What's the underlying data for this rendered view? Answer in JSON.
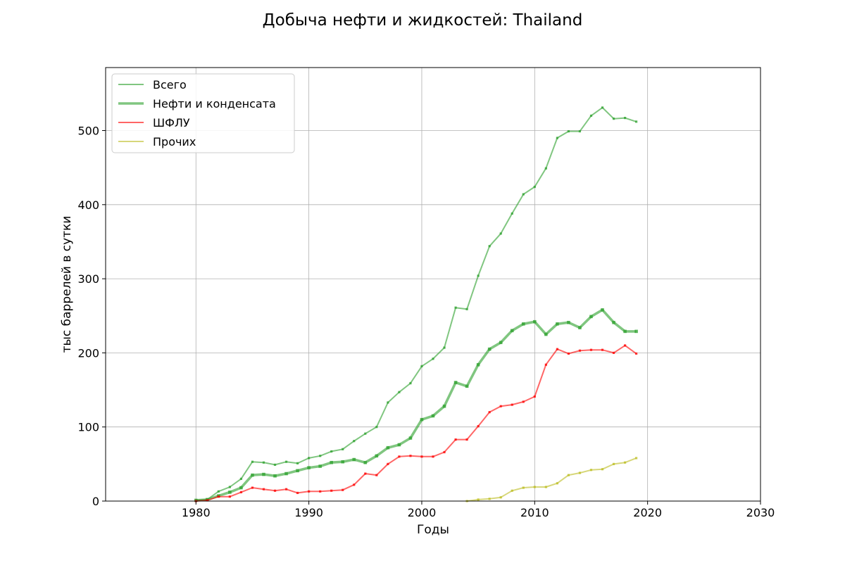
{
  "chart_data": {
    "type": "line",
    "title": "Добыча нефти и жидкостей: Thailand",
    "xlabel": "Годы",
    "ylabel": "тыс баррелей в сутки",
    "xlim": [
      1972,
      2030
    ],
    "ylim": [
      0,
      585
    ],
    "xticks": [
      1980,
      1990,
      2000,
      2010,
      2020,
      2030
    ],
    "yticks": [
      0,
      100,
      200,
      300,
      400,
      500
    ],
    "grid": true,
    "legend_position": "top-left",
    "series": [
      {
        "name": "Всего",
        "color": "#2ca02c",
        "x": [
          1980,
          1981,
          1982,
          1983,
          1984,
          1985,
          1986,
          1987,
          1988,
          1989,
          1990,
          1991,
          1992,
          1993,
          1994,
          1995,
          1996,
          1997,
          1998,
          1999,
          2000,
          2001,
          2002,
          2003,
          2004,
          2005,
          2006,
          2007,
          2008,
          2009,
          2010,
          2011,
          2012,
          2013,
          2014,
          2015,
          2016,
          2017,
          2018,
          2019
        ],
        "values": [
          1,
          2,
          13,
          19,
          30,
          53,
          52,
          49,
          53,
          51,
          58,
          61,
          67,
          70,
          81,
          91,
          100,
          133,
          147,
          159,
          182,
          192,
          207,
          261,
          259,
          304,
          344,
          361,
          388,
          414,
          424,
          449,
          490,
          499,
          499,
          520,
          531,
          516,
          517,
          512
        ]
      },
      {
        "name": "Нефти и конденсата",
        "color": "#2ca02c",
        "x": [
          1980,
          1981,
          1982,
          1983,
          1984,
          1985,
          1986,
          1987,
          1988,
          1989,
          1990,
          1991,
          1992,
          1993,
          1994,
          1995,
          1996,
          1997,
          1998,
          1999,
          2000,
          2001,
          2002,
          2003,
          2004,
          2005,
          2006,
          2007,
          2008,
          2009,
          2010,
          2011,
          2012,
          2013,
          2014,
          2015,
          2016,
          2017,
          2018,
          2019
        ],
        "values": [
          1,
          2,
          7,
          12,
          18,
          35,
          36,
          34,
          37,
          41,
          45,
          47,
          52,
          53,
          56,
          52,
          61,
          72,
          76,
          85,
          110,
          115,
          128,
          160,
          155,
          184,
          205,
          214,
          230,
          239,
          242,
          225,
          239,
          241,
          234,
          249,
          258,
          241,
          229,
          229
        ]
      },
      {
        "name": "ШФЛУ",
        "color": "#ff0000",
        "x": [
          1980,
          1981,
          1982,
          1983,
          1984,
          1985,
          1986,
          1987,
          1988,
          1989,
          1990,
          1991,
          1992,
          1993,
          1994,
          1995,
          1996,
          1997,
          1998,
          1999,
          2000,
          2001,
          2002,
          2003,
          2004,
          2005,
          2006,
          2007,
          2008,
          2009,
          2010,
          2011,
          2012,
          2013,
          2014,
          2015,
          2016,
          2017,
          2018,
          2019
        ],
        "values": [
          0,
          1,
          6,
          6,
          12,
          18,
          16,
          14,
          16,
          11,
          13,
          13,
          14,
          15,
          22,
          37,
          35,
          50,
          60,
          61,
          60,
          60,
          66,
          83,
          83,
          101,
          120,
          128,
          130,
          134,
          141,
          184,
          205,
          199,
          203,
          204,
          204,
          200,
          210,
          199
        ]
      },
      {
        "name": "Прочих",
        "color": "#bcbd22",
        "x": [
          2004,
          2005,
          2006,
          2007,
          2008,
          2009,
          2010,
          2011,
          2012,
          2013,
          2014,
          2015,
          2016,
          2017,
          2018,
          2019
        ],
        "values": [
          0,
          2,
          3,
          5,
          14,
          18,
          19,
          19,
          24,
          35,
          38,
          42,
          43,
          50,
          52,
          58
        ]
      }
    ]
  }
}
